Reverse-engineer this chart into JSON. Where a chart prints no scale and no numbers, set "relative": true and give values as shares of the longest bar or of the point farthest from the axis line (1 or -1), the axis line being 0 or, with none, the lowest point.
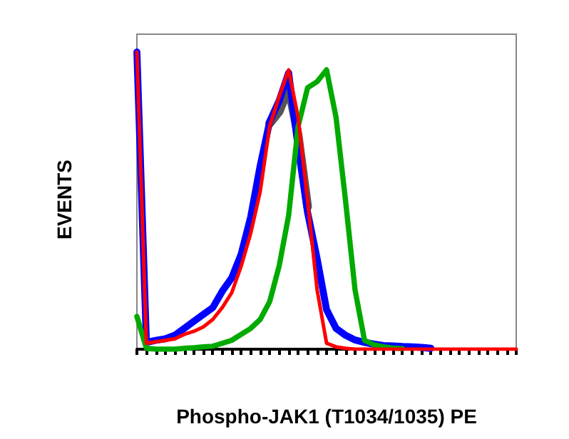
{
  "chart_data": {
    "type": "line",
    "relative": true,
    "xlabel": "Phospho-JAK1 (T1034/1035) PE",
    "ylabel": "EVENTS",
    "categories": [
      null,
      null,
      null,
      null,
      null,
      null,
      null,
      null,
      null,
      null,
      null,
      null,
      null,
      null,
      null,
      null,
      null,
      null,
      null,
      null,
      null,
      null,
      null,
      null,
      null,
      null,
      null,
      null,
      null,
      null,
      null,
      null,
      null,
      null,
      null,
      null,
      null,
      null,
      null,
      null,
      null
    ],
    "series": [
      {
        "color": "#555555",
        "values": [
          null,
          null,
          null,
          null,
          null,
          null,
          null,
          null,
          null,
          null,
          null,
          null,
          null,
          null,
          0.76,
          0.8,
          0.88,
          0.72,
          0.48,
          null,
          null,
          null,
          null,
          null,
          null,
          null,
          null,
          null,
          null,
          null,
          null,
          null,
          null,
          null,
          null,
          null,
          null,
          null,
          null,
          null,
          null
        ]
      },
      {
        "color": "#0000ff",
        "values": [
          1.0,
          0.023,
          0.03,
          0.035,
          0.047,
          0.07,
          0.094,
          0.117,
          0.14,
          0.195,
          0.24,
          0.32,
          0.445,
          0.617,
          0.766,
          0.836,
          0.93,
          0.68,
          0.46,
          0.305,
          0.133,
          0.07,
          0.047,
          0.031,
          0.023,
          0.017,
          0.0125,
          0.011,
          0.009,
          0.008,
          0.006,
          0.003,
          null,
          null,
          null,
          null,
          null,
          null,
          null,
          null,
          null
        ]
      },
      {
        "color": "#00aa00",
        "values": [
          0.11,
          0.003,
          0,
          0,
          0,
          0.003,
          0.005,
          0.008,
          0.01,
          0.02,
          0.03,
          0.05,
          0.07,
          0.1,
          0.16,
          0.28,
          0.45,
          0.75,
          0.88,
          0.9,
          0.94,
          0.78,
          0.5,
          0.2,
          0.03,
          0.015,
          0.008,
          0.004,
          0.002,
          null,
          null,
          null,
          null,
          null,
          null,
          null,
          null,
          null,
          null,
          null,
          null
        ]
      },
      {
        "color": "#ff0000",
        "values": [
          1.0,
          0.02,
          0.025,
          0.03,
          0.035,
          0.05,
          0.06,
          0.075,
          0.1,
          0.14,
          0.19,
          0.28,
          0.39,
          0.53,
          0.75,
          0.85,
          0.94,
          0.78,
          0.5,
          0.2,
          0.02,
          0.008,
          0.003,
          0,
          0,
          0,
          0,
          0,
          0,
          0,
          0,
          0,
          0,
          0,
          0,
          0,
          0,
          0,
          0,
          0,
          0
        ]
      }
    ],
    "grid": false,
    "marker": "none",
    "line_style": "solid"
  }
}
